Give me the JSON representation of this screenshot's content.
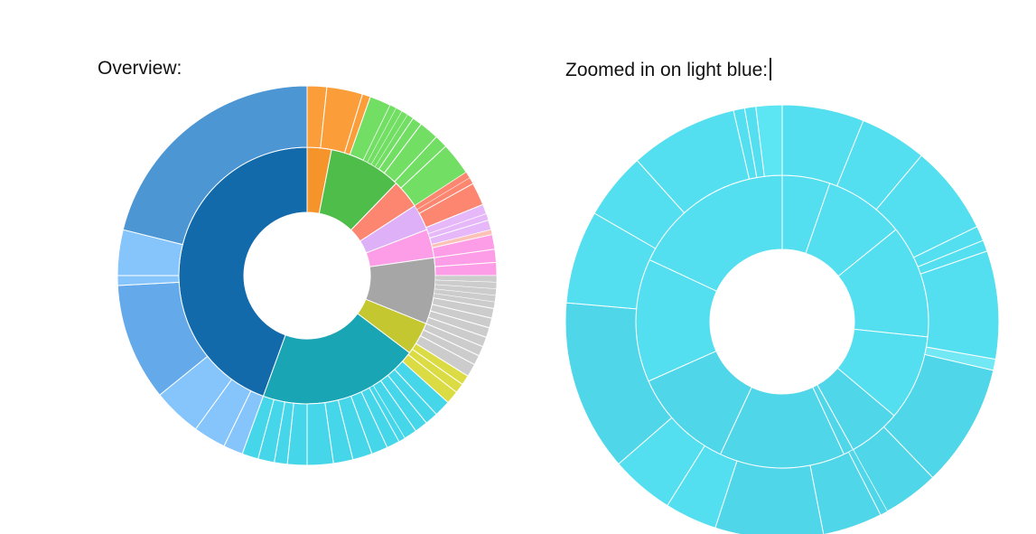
{
  "labels": {
    "overview": "Overview:",
    "zoomed": "Zoomed in on light blue:"
  },
  "chart_data": [
    {
      "type": "sunburst",
      "inner_ring": [
        {
          "color": "#f6942c",
          "start": 0,
          "end": 11
        },
        {
          "color": "#4fbd4a",
          "start": 11,
          "end": 44
        },
        {
          "color": "#fc8670",
          "start": 44,
          "end": 57
        },
        {
          "color": "#deb0f8",
          "start": 57,
          "end": 69
        },
        {
          "color": "#fe9de7",
          "start": 69,
          "end": 82
        },
        {
          "color": "#a6a6a6",
          "start": 82,
          "end": 112
        },
        {
          "color": "#c4c72f",
          "start": 112,
          "end": 127
        },
        {
          "color": "#1aa5b5",
          "start": 127,
          "end": 200
        },
        {
          "color": "#126aab",
          "start": 200,
          "end": 360
        }
      ],
      "outer_ring": [
        {
          "color": "#fb9d39",
          "start": 0,
          "end": 6
        },
        {
          "color": "#fb9d39",
          "start": 6,
          "end": 17
        },
        {
          "color": "#fb9d39",
          "start": 17,
          "end": 19.5
        },
        {
          "color": "#72df64",
          "start": 19.5,
          "end": 26
        },
        {
          "color": "#72df64",
          "start": 26,
          "end": 28
        },
        {
          "color": "#72df64",
          "start": 28,
          "end": 30
        },
        {
          "color": "#72df64",
          "start": 30,
          "end": 32
        },
        {
          "color": "#72df64",
          "start": 32,
          "end": 34
        },
        {
          "color": "#72df64",
          "start": 34,
          "end": 37
        },
        {
          "color": "#72df64",
          "start": 37,
          "end": 43
        },
        {
          "color": "#72df64",
          "start": 43,
          "end": 47
        },
        {
          "color": "#72df64",
          "start": 47,
          "end": 57
        },
        {
          "color": "#fc8670",
          "start": 57,
          "end": 59
        },
        {
          "color": "#fc8670",
          "start": 59,
          "end": 61
        },
        {
          "color": "#fc8670",
          "start": 61,
          "end": 68
        },
        {
          "color": "#e6b8fa",
          "start": 68,
          "end": 71
        },
        {
          "color": "#e6b8fa",
          "start": 71,
          "end": 73
        },
        {
          "color": "#e6b8fa",
          "start": 73,
          "end": 76
        },
        {
          "color": "#fcc2b8",
          "start": 76,
          "end": 77.5
        },
        {
          "color": "#fe9de7",
          "start": 77.5,
          "end": 82
        },
        {
          "color": "#fe9de7",
          "start": 82,
          "end": 86
        },
        {
          "color": "#fe9de7",
          "start": 86,
          "end": 90
        },
        {
          "color": "#cccccc",
          "start": 90,
          "end": 92
        },
        {
          "color": "#cccccc",
          "start": 92,
          "end": 94
        },
        {
          "color": "#cccccc",
          "start": 94,
          "end": 96
        },
        {
          "color": "#cccccc",
          "start": 96,
          "end": 98
        },
        {
          "color": "#cccccc",
          "start": 98,
          "end": 100
        },
        {
          "color": "#cccccc",
          "start": 100,
          "end": 103
        },
        {
          "color": "#cccccc",
          "start": 103,
          "end": 106
        },
        {
          "color": "#cccccc",
          "start": 106,
          "end": 109
        },
        {
          "color": "#cccccc",
          "start": 109,
          "end": 112
        },
        {
          "color": "#cccccc",
          "start": 112,
          "end": 115
        },
        {
          "color": "#cccccc",
          "start": 115,
          "end": 118
        },
        {
          "color": "#cccccc",
          "start": 118,
          "end": 122
        },
        {
          "color": "#dbdc44",
          "start": 122,
          "end": 125
        },
        {
          "color": "#dbdc44",
          "start": 125,
          "end": 128
        },
        {
          "color": "#dbdc44",
          "start": 128,
          "end": 132
        },
        {
          "color": "#46d6ea",
          "start": 132,
          "end": 137
        },
        {
          "color": "#46d6ea",
          "start": 137,
          "end": 141
        },
        {
          "color": "#46d6ea",
          "start": 141,
          "end": 145
        },
        {
          "color": "#46d6ea",
          "start": 145,
          "end": 149
        },
        {
          "color": "#46d6ea",
          "start": 149,
          "end": 151
        },
        {
          "color": "#46d6ea",
          "start": 151,
          "end": 155
        },
        {
          "color": "#46d6ea",
          "start": 155,
          "end": 160
        },
        {
          "color": "#46d6ea",
          "start": 160,
          "end": 166
        },
        {
          "color": "#46d6ea",
          "start": 166,
          "end": 172
        },
        {
          "color": "#46d6ea",
          "start": 172,
          "end": 180
        },
        {
          "color": "#46d6ea",
          "start": 180,
          "end": 186
        },
        {
          "color": "#46d6ea",
          "start": 186,
          "end": 190
        },
        {
          "color": "#46d6ea",
          "start": 190,
          "end": 195
        },
        {
          "color": "#46d6ea",
          "start": 195,
          "end": 200
        },
        {
          "color": "#86c4fc",
          "start": 200,
          "end": 206
        },
        {
          "color": "#86c4fc",
          "start": 206,
          "end": 216
        },
        {
          "color": "#86c4fc",
          "start": 216,
          "end": 231
        },
        {
          "color": "#64a9ea",
          "start": 231,
          "end": 267
        },
        {
          "color": "#86c4fc",
          "start": 267,
          "end": 270
        },
        {
          "color": "#86c4fc",
          "start": 270,
          "end": 284
        },
        {
          "color": "#4c96d4",
          "start": 284,
          "end": 360
        }
      ]
    },
    {
      "type": "sunburst",
      "inner_ring": [
        {
          "color": "#53dfef",
          "start": 0,
          "end": 19
        },
        {
          "color": "#53dfef",
          "start": 19,
          "end": 51
        },
        {
          "color": "#53dfef",
          "start": 51,
          "end": 96
        },
        {
          "color": "#53dfef",
          "start": 96,
          "end": 130
        },
        {
          "color": "#4fd6e9",
          "start": 130,
          "end": 151
        },
        {
          "color": "#4fd6e9",
          "start": 151,
          "end": 155
        },
        {
          "color": "#4fd6e9",
          "start": 155,
          "end": 205
        },
        {
          "color": "#4fd6e9",
          "start": 205,
          "end": 246
        },
        {
          "color": "#53dfef",
          "start": 246,
          "end": 295
        },
        {
          "color": "#53dfef",
          "start": 295,
          "end": 360
        }
      ],
      "outer_ring": [
        {
          "color": "#53dfef",
          "start": 0,
          "end": 22
        },
        {
          "color": "#53dfef",
          "start": 22,
          "end": 40
        },
        {
          "color": "#53dfef",
          "start": 40,
          "end": 64
        },
        {
          "color": "#53dfef",
          "start": 64,
          "end": 68
        },
        {
          "color": "#53dfef",
          "start": 68,
          "end": 71
        },
        {
          "color": "#53dfef",
          "start": 71,
          "end": 100
        },
        {
          "color": "#73e8f5",
          "start": 100,
          "end": 103
        },
        {
          "color": "#4fd6e9",
          "start": 103,
          "end": 136
        },
        {
          "color": "#4fd6e9",
          "start": 136,
          "end": 151
        },
        {
          "color": "#4fd6e9",
          "start": 151,
          "end": 153
        },
        {
          "color": "#4fd6e9",
          "start": 153,
          "end": 169
        },
        {
          "color": "#4fd6e9",
          "start": 169,
          "end": 198
        },
        {
          "color": "#53dfef",
          "start": 198,
          "end": 212
        },
        {
          "color": "#53dfef",
          "start": 212,
          "end": 229
        },
        {
          "color": "#4fd6e9",
          "start": 229,
          "end": 275
        },
        {
          "color": "#53dfef",
          "start": 275,
          "end": 300
        },
        {
          "color": "#53dfef",
          "start": 300,
          "end": 318
        },
        {
          "color": "#53dfef",
          "start": 318,
          "end": 347
        },
        {
          "color": "#53dfef",
          "start": 347,
          "end": 350
        },
        {
          "color": "#53dfef",
          "start": 350,
          "end": 353
        },
        {
          "color": "#5ce6f4",
          "start": 353,
          "end": 360
        }
      ]
    }
  ]
}
